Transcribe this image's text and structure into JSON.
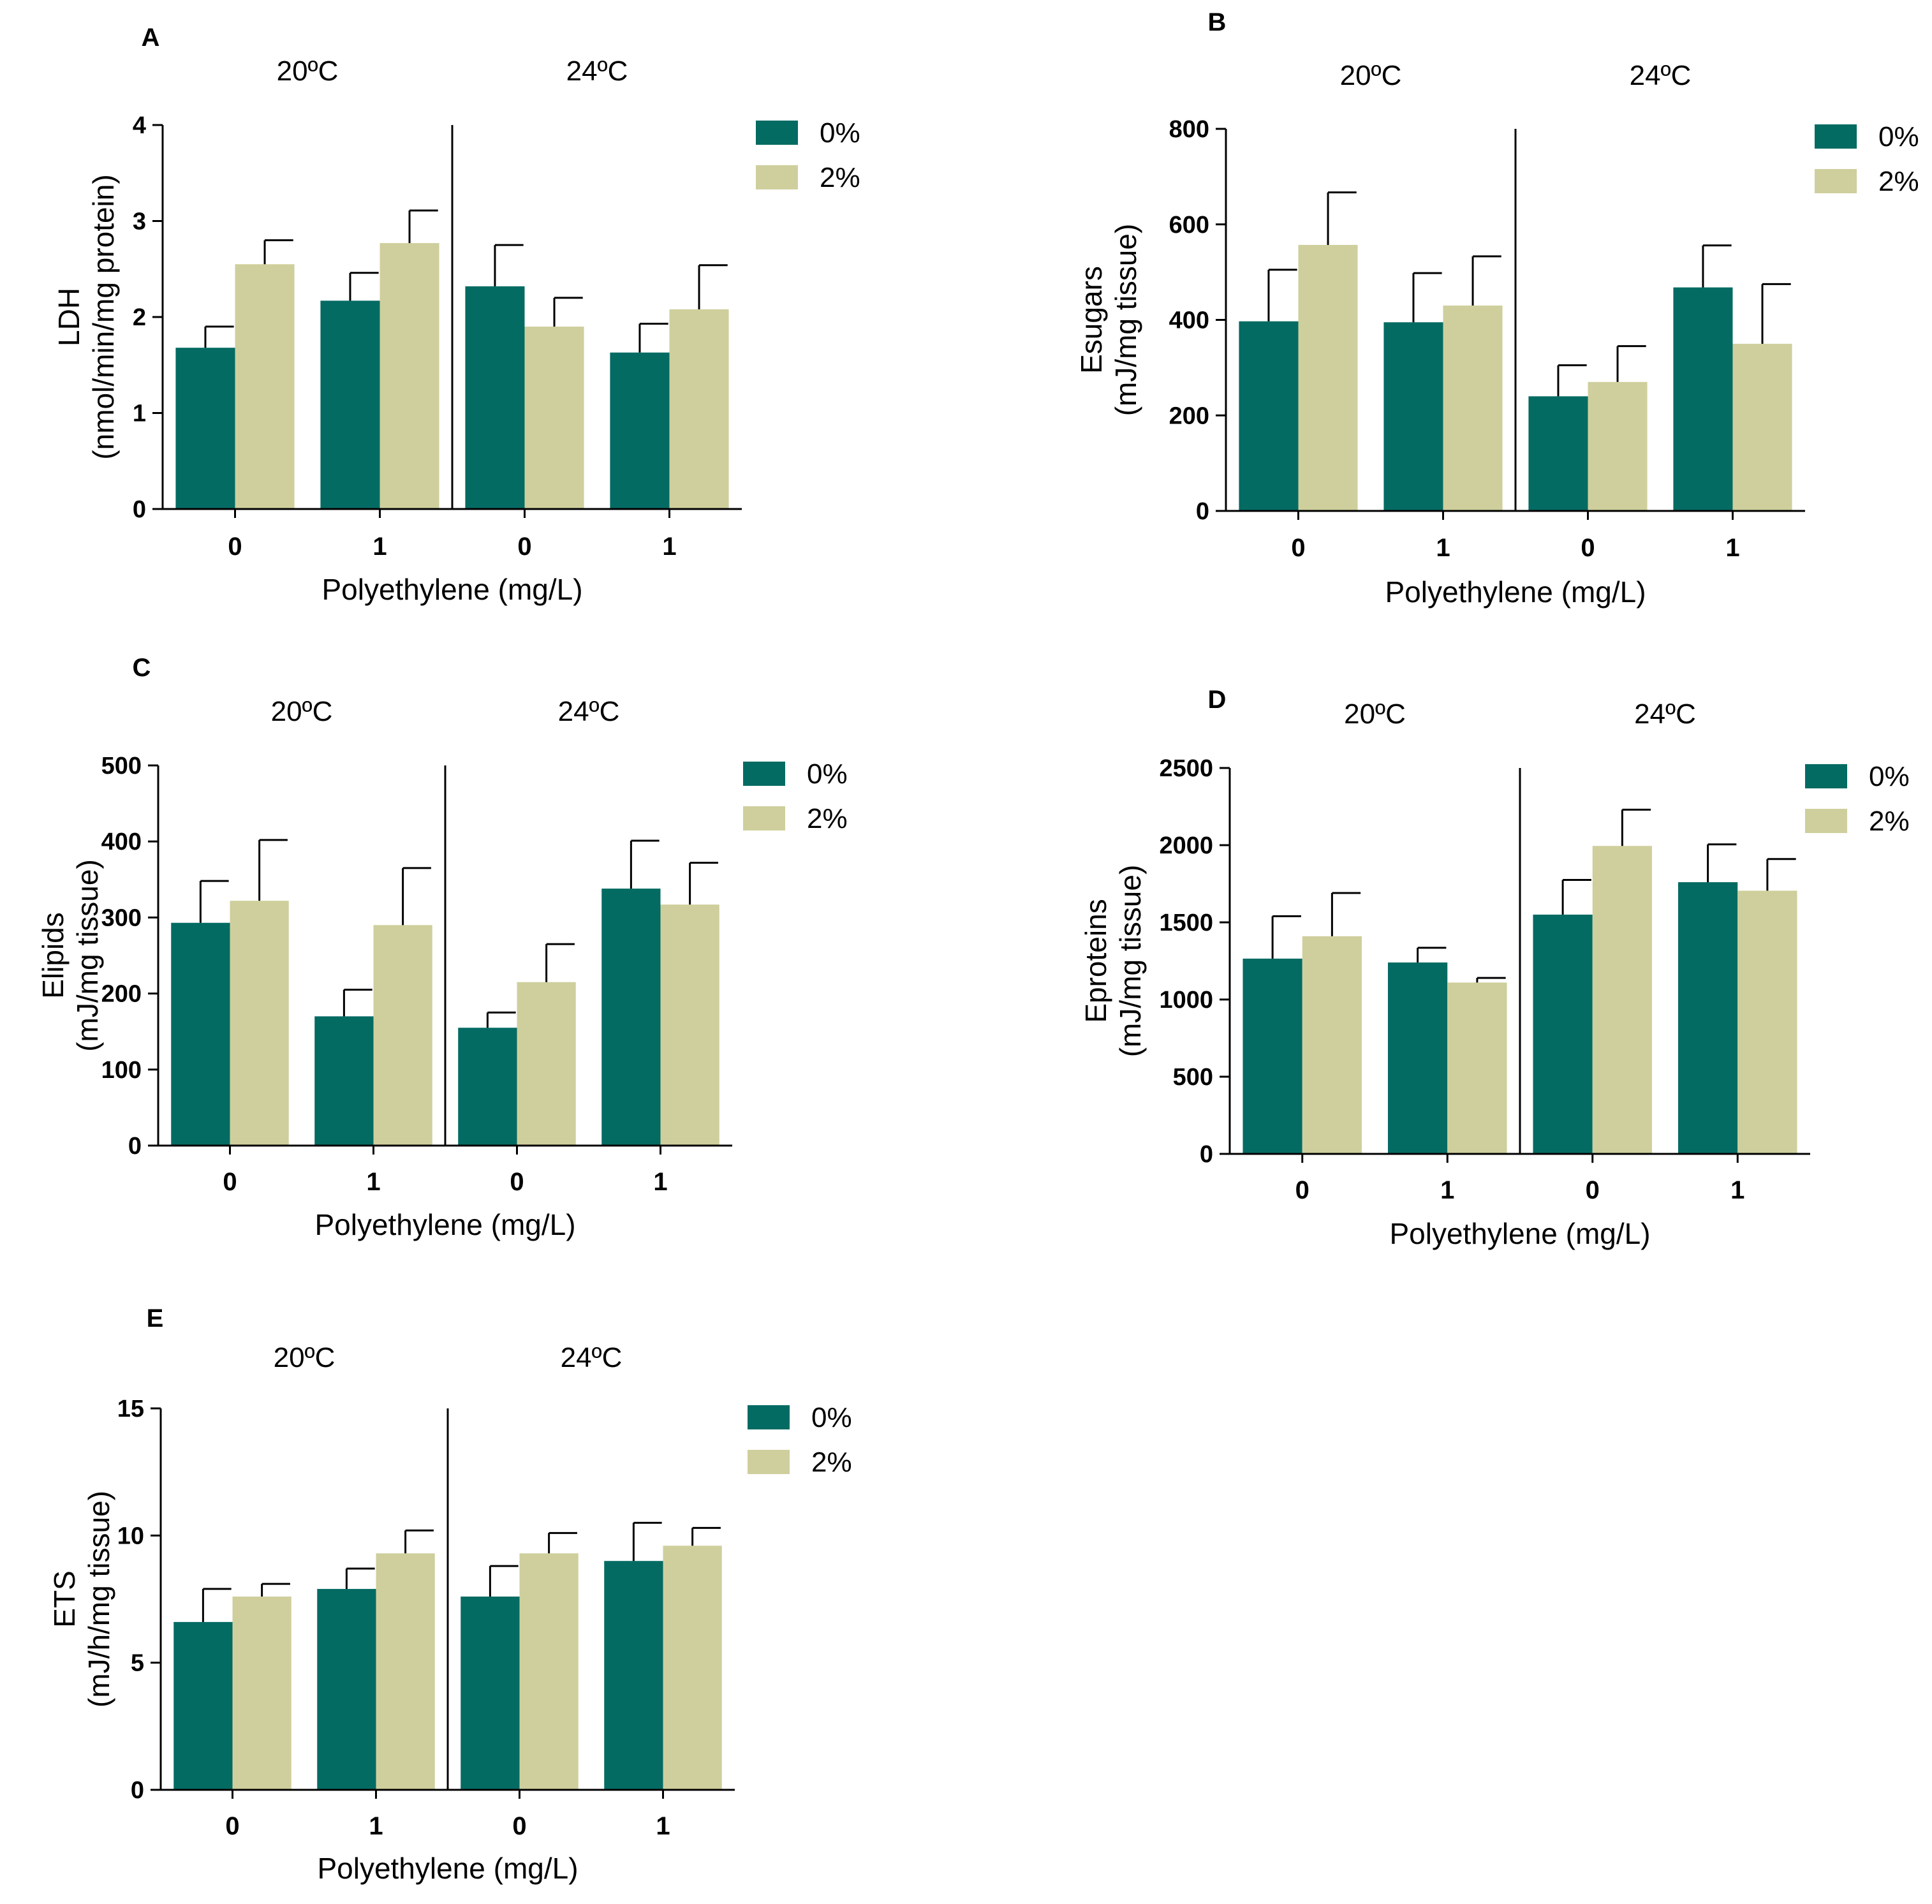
{
  "chart_data": [
    {
      "panel": "A",
      "type": "bar",
      "groups": [
        "20ºC",
        "24ºC"
      ],
      "categories": [
        "0",
        "1",
        "0",
        "1"
      ],
      "series": [
        {
          "name": "0%",
          "values": [
            1.68,
            2.17,
            2.32,
            1.63
          ],
          "errors": [
            0.22,
            0.29,
            0.43,
            0.3
          ]
        },
        {
          "name": "2%",
          "values": [
            2.55,
            2.77,
            1.9,
            2.08
          ],
          "errors": [
            0.25,
            0.34,
            0.3,
            0.46
          ]
        }
      ],
      "xlabel": "Polyethylene (mg/L)",
      "ylabel": [
        "LDH",
        "(nmol/min/mg protein)"
      ],
      "ylim": [
        0,
        4
      ],
      "yticks": [
        0,
        1,
        2,
        3,
        4
      ],
      "legend": "top-right"
    },
    {
      "panel": "B",
      "type": "bar",
      "groups": [
        "20ºC",
        "24ºC"
      ],
      "categories": [
        "0",
        "1",
        "0",
        "1"
      ],
      "series": [
        {
          "name": "0%",
          "values": [
            397,
            395,
            240,
            468
          ],
          "errors": [
            108,
            103,
            65,
            88
          ]
        },
        {
          "name": "2%",
          "values": [
            557,
            430,
            270,
            350
          ],
          "errors": [
            110,
            103,
            75,
            125
          ]
        }
      ],
      "xlabel": "Polyethylene (mg/L)",
      "ylabel": [
        "Esugars",
        "(mJ/mg tissue)"
      ],
      "ylim": [
        0,
        800
      ],
      "yticks": [
        0,
        200,
        400,
        600,
        800
      ],
      "legend": "top-right"
    },
    {
      "panel": "C",
      "type": "bar",
      "groups": [
        "20ºC",
        "24ºC"
      ],
      "categories": [
        "0",
        "1",
        "0",
        "1"
      ],
      "series": [
        {
          "name": "0%",
          "values": [
            293,
            170,
            155,
            338
          ],
          "errors": [
            55,
            35,
            20,
            63
          ]
        },
        {
          "name": "2%",
          "values": [
            322,
            290,
            215,
            317
          ],
          "errors": [
            80,
            75,
            50,
            55
          ]
        }
      ],
      "xlabel": "Polyethylene (mg/L)",
      "ylabel": [
        "Elipids",
        "(mJ/mg tissue)"
      ],
      "ylim": [
        0,
        500
      ],
      "yticks": [
        0,
        100,
        200,
        300,
        400,
        500
      ],
      "legend": "top-right"
    },
    {
      "panel": "D",
      "type": "bar",
      "groups": [
        "20ºC",
        "24ºC"
      ],
      "categories": [
        "0",
        "1",
        "0",
        "1"
      ],
      "series": [
        {
          "name": "0%",
          "values": [
            1265,
            1240,
            1550,
            1760
          ],
          "errors": [
            275,
            95,
            225,
            245
          ]
        },
        {
          "name": "2%",
          "values": [
            1410,
            1110,
            1995,
            1705
          ],
          "errors": [
            280,
            30,
            235,
            205
          ]
        }
      ],
      "xlabel": "Polyethylene (mg/L)",
      "ylabel": [
        "Eproteins",
        "(mJ/mg tissue)"
      ],
      "ylim": [
        0,
        2500
      ],
      "yticks": [
        0,
        500,
        1000,
        1500,
        2000,
        2500
      ],
      "legend": "top-right"
    },
    {
      "panel": "E",
      "type": "bar",
      "groups": [
        "20ºC",
        "24ºC"
      ],
      "categories": [
        "0",
        "1",
        "0",
        "1"
      ],
      "series": [
        {
          "name": "0%",
          "values": [
            6.6,
            7.9,
            7.6,
            9.0
          ],
          "errors": [
            1.3,
            0.8,
            1.2,
            1.5
          ]
        },
        {
          "name": "2%",
          "values": [
            7.6,
            9.3,
            9.3,
            9.6
          ],
          "errors": [
            0.5,
            0.9,
            0.8,
            0.7
          ]
        }
      ],
      "xlabel": "Polyethylene (mg/L)",
      "ylabel": [
        "ETS",
        "(mJ/h/mg tissue)"
      ],
      "ylim": [
        0,
        15
      ],
      "yticks": [
        0,
        5,
        10,
        15
      ],
      "legend": "top-right"
    }
  ],
  "colors": {
    "series_0": "#046b63",
    "series_1": "#cfcf9d",
    "axis": "#000000"
  }
}
